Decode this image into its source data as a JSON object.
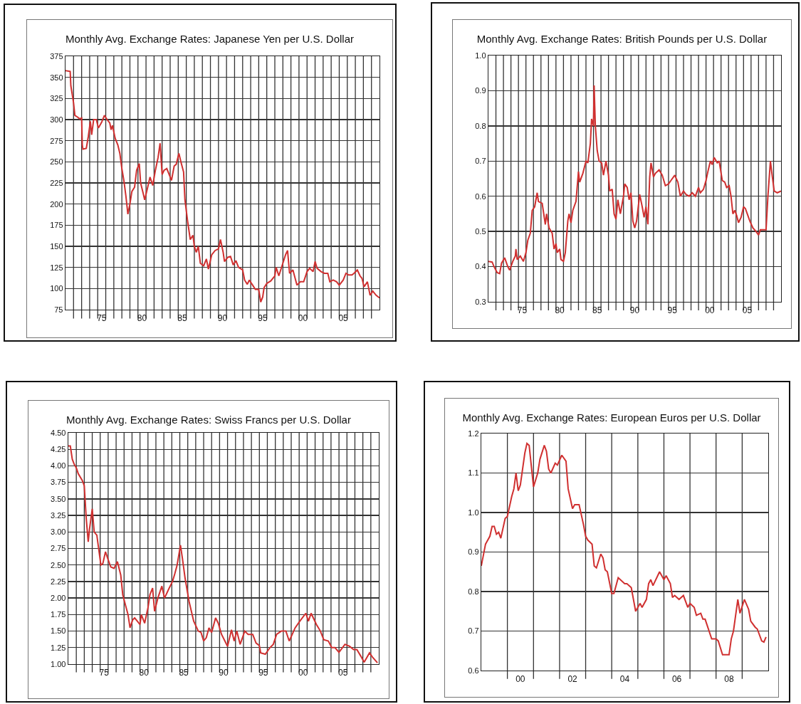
{
  "chart_data": [
    {
      "type": "line",
      "title": "Monthly Avg. Exchange Rates: Japanese Yen per U.S. Dollar",
      "color": "#d03030",
      "grid": true,
      "x": [
        "1971-01",
        "1971-08",
        "1971-09",
        "1972-01",
        "1972-03",
        "1972-07",
        "1972-10",
        "1973-01",
        "1973-02",
        "1973-03",
        "1973-08",
        "1973-11",
        "1974-02",
        "1974-04",
        "1974-07",
        "1974-11",
        "1975-02",
        "1975-07",
        "1975-11",
        "1976-03",
        "1976-07",
        "1976-09",
        "1976-11",
        "1977-03",
        "1977-07",
        "1977-10",
        "1978-01",
        "1978-04",
        "1978-07",
        "1978-10",
        "1979-01",
        "1979-04",
        "1979-08",
        "1979-11",
        "1980-03",
        "1980-05",
        "1980-09",
        "1980-11",
        "1981-03",
        "1981-07",
        "1981-11",
        "1982-03",
        "1982-07",
        "1982-10",
        "1983-01",
        "1983-04",
        "1983-08",
        "1983-11",
        "1984-03",
        "1984-07",
        "1984-10",
        "1985-02",
        "1985-05",
        "1985-09",
        "1985-11",
        "1986-03",
        "1986-07",
        "1986-11",
        "1987-01",
        "1987-04",
        "1987-07",
        "1987-10",
        "1988-03",
        "1988-07",
        "1988-10",
        "1989-03",
        "1989-08",
        "1990-01",
        "1990-04",
        "1990-08",
        "1990-10",
        "1991-03",
        "1991-07",
        "1991-11",
        "1992-03",
        "1992-07",
        "1993-01",
        "1993-04",
        "1993-08",
        "1993-11",
        "1994-04",
        "1994-08",
        "1995-01",
        "1995-04",
        "1995-07",
        "1995-09",
        "1996-01",
        "1996-07",
        "1997-01",
        "1997-03",
        "1997-07",
        "1998-01",
        "1998-05",
        "1998-08",
        "1998-11",
        "1999-04",
        "1999-10",
        "2000-03",
        "2000-08",
        "2001-01",
        "2001-05",
        "2001-10",
        "2002-01",
        "2002-04",
        "2002-10",
        "2003-03",
        "2003-08",
        "2003-11",
        "2004-04",
        "2004-09",
        "2005-01",
        "2005-07",
        "2005-11",
        "2006-03",
        "2006-08",
        "2006-11",
        "2007-04",
        "2007-08",
        "2007-11",
        "2008-02",
        "2008-07",
        "2008-11",
        "2009-03",
        "2009-08",
        "2010-01"
      ],
      "values": [
        358,
        357,
        340,
        320,
        305,
        303,
        301,
        302,
        270,
        265,
        266,
        280,
        298,
        282,
        300,
        300,
        290,
        297,
        305,
        300,
        296,
        288,
        293,
        278,
        270,
        260,
        242,
        228,
        210,
        188,
        200,
        215,
        220,
        240,
        248,
        225,
        212,
        205,
        218,
        232,
        222,
        240,
        255,
        272,
        235,
        240,
        242,
        236,
        228,
        245,
        247,
        260,
        250,
        238,
        205,
        180,
        158,
        163,
        150,
        143,
        150,
        130,
        127,
        135,
        123,
        140,
        145,
        147,
        158,
        143,
        132,
        137,
        138,
        128,
        133,
        125,
        122,
        110,
        105,
        110,
        104,
        99,
        99,
        84,
        90,
        101,
        106,
        109,
        115,
        125,
        115,
        130,
        140,
        145,
        118,
        122,
        104,
        108,
        108,
        120,
        124,
        120,
        132,
        124,
        120,
        118,
        118,
        108,
        110,
        108,
        104,
        110,
        118,
        116,
        116,
        118,
        122,
        115,
        112,
        102,
        108,
        92,
        97,
        92,
        89
      ],
      "xlim": [
        "1971-01",
        "2010-01"
      ],
      "xticks": [
        {
          "value": "1972",
          "label": null
        },
        {
          "value": "1973",
          "label": null
        },
        {
          "value": "1974",
          "label": null
        },
        {
          "value": "1975",
          "label": null
        },
        {
          "value": "1975-07",
          "label": "75"
        },
        {
          "value": "1976",
          "label": null
        },
        {
          "value": "1977",
          "label": null
        },
        {
          "value": "1978",
          "label": null
        },
        {
          "value": "1979",
          "label": null
        },
        {
          "value": "1980",
          "label": null
        },
        {
          "value": "1980-07",
          "label": "80"
        },
        {
          "value": "1981",
          "label": null
        },
        {
          "value": "1982",
          "label": null
        },
        {
          "value": "1983",
          "label": null
        },
        {
          "value": "1984",
          "label": null
        },
        {
          "value": "1985",
          "label": null
        },
        {
          "value": "1985-07",
          "label": "85"
        },
        {
          "value": "1986",
          "label": null
        },
        {
          "value": "1987",
          "label": null
        },
        {
          "value": "1988",
          "label": null
        },
        {
          "value": "1989",
          "label": null
        },
        {
          "value": "1990",
          "label": null
        },
        {
          "value": "1990-07",
          "label": "90"
        },
        {
          "value": "1991",
          "label": null
        },
        {
          "value": "1992",
          "label": null
        },
        {
          "value": "1993",
          "label": null
        },
        {
          "value": "1994",
          "label": null
        },
        {
          "value": "1995",
          "label": null
        },
        {
          "value": "1995-07",
          "label": "95"
        },
        {
          "value": "1996",
          "label": null
        },
        {
          "value": "1997",
          "label": null
        },
        {
          "value": "1998",
          "label": null
        },
        {
          "value": "1999",
          "label": null
        },
        {
          "value": "2000",
          "label": null
        },
        {
          "value": "2000-07",
          "label": "00"
        },
        {
          "value": "2001",
          "label": null
        },
        {
          "value": "2002",
          "label": null
        },
        {
          "value": "2003",
          "label": null
        },
        {
          "value": "2004",
          "label": null
        },
        {
          "value": "2005",
          "label": null
        },
        {
          "value": "2005-07",
          "label": "05"
        },
        {
          "value": "2006",
          "label": null
        },
        {
          "value": "2007",
          "label": null
        },
        {
          "value": "2008",
          "label": null
        },
        {
          "value": "2009",
          "label": null
        }
      ],
      "ylim": [
        75,
        375
      ],
      "yticks": [
        75,
        100,
        125,
        150,
        175,
        200,
        225,
        250,
        275,
        300,
        325,
        350,
        375
      ]
    },
    {
      "type": "line",
      "title": "Monthly Avg. Exchange Rates: British Pounds per U.S. Dollar",
      "color": "#d03030",
      "grid": true,
      "x": [
        "1971-01",
        "1971-07",
        "1971-10",
        "1972-03",
        "1972-07",
        "1972-10",
        "1973-03",
        "1973-08",
        "1973-11",
        "1974-04",
        "1974-08",
        "1974-09",
        "1974-11",
        "1975-04",
        "1975-09",
        "1976-01",
        "1976-04",
        "1976-08",
        "1976-11",
        "1977-03",
        "1977-07",
        "1977-09",
        "1978-03",
        "1978-08",
        "1978-10",
        "1979-02",
        "1979-07",
        "1979-10",
        "1980-01",
        "1980-03",
        "1980-07",
        "1980-09",
        "1981-01",
        "1981-04",
        "1981-08",
        "1981-10",
        "1982-01",
        "1982-04",
        "1982-09",
        "1983-01",
        "1983-03",
        "1983-08",
        "1984-01",
        "1984-04",
        "1984-08",
        "1984-10",
        "1985-01",
        "1985-02",
        "1985-04",
        "1985-07",
        "1985-10",
        "1986-02",
        "1986-05",
        "1986-09",
        "1987-01",
        "1987-03",
        "1987-07",
        "1987-10",
        "1988-01",
        "1988-04",
        "1988-08",
        "1989-01",
        "1989-03",
        "1989-07",
        "1989-10",
        "1990-01",
        "1990-04",
        "1990-07",
        "1990-10",
        "1991-03",
        "1991-07",
        "1991-10",
        "1992-01",
        "1992-04",
        "1992-07",
        "1992-09",
        "1993-01",
        "1993-04",
        "1993-10",
        "1994-03",
        "1994-08",
        "1995-01",
        "1995-05",
        "1995-11",
        "1996-04",
        "1996-08",
        "1997-01",
        "1997-05",
        "1997-10",
        "1998-03",
        "1998-08",
        "1999-01",
        "1999-04",
        "1999-09",
        "2000-01",
        "2000-04",
        "2000-08",
        "2000-11",
        "2001-02",
        "2001-07",
        "2001-10",
        "2002-03",
        "2002-07",
        "2002-10",
        "2003-02",
        "2003-05",
        "2003-08",
        "2003-11",
        "2004-02",
        "2004-05",
        "2004-09",
        "2005-01",
        "2005-04",
        "2005-08",
        "2005-11",
        "2006-04",
        "2006-09",
        "2007-01",
        "2007-04",
        "2007-09",
        "2008-01",
        "2008-04",
        "2008-08",
        "2008-10",
        "2009-02",
        "2009-07",
        "2010-01"
      ],
      "values": [
        0.415,
        0.413,
        0.4,
        0.383,
        0.38,
        0.41,
        0.425,
        0.4,
        0.39,
        0.415,
        0.43,
        0.45,
        0.42,
        0.43,
        0.415,
        0.44,
        0.475,
        0.495,
        0.56,
        0.57,
        0.61,
        0.585,
        0.58,
        0.52,
        0.55,
        0.51,
        0.495,
        0.45,
        0.465,
        0.44,
        0.45,
        0.42,
        0.415,
        0.44,
        0.53,
        0.55,
        0.525,
        0.56,
        0.585,
        0.67,
        0.64,
        0.665,
        0.7,
        0.695,
        0.75,
        0.82,
        0.8,
        0.915,
        0.8,
        0.73,
        0.7,
        0.695,
        0.66,
        0.7,
        0.66,
        0.615,
        0.62,
        0.55,
        0.535,
        0.59,
        0.55,
        0.6,
        0.635,
        0.625,
        0.59,
        0.61,
        0.53,
        0.51,
        0.53,
        0.605,
        0.57,
        0.54,
        0.57,
        0.52,
        0.655,
        0.695,
        0.655,
        0.665,
        0.675,
        0.66,
        0.63,
        0.635,
        0.645,
        0.66,
        0.64,
        0.6,
        0.615,
        0.605,
        0.6,
        0.61,
        0.6,
        0.625,
        0.61,
        0.62,
        0.645,
        0.67,
        0.7,
        0.69,
        0.71,
        0.695,
        0.7,
        0.645,
        0.64,
        0.625,
        0.63,
        0.6,
        0.55,
        0.56,
        0.545,
        0.525,
        0.54,
        0.57,
        0.565,
        0.545,
        0.53,
        0.51,
        0.5,
        0.49,
        0.505,
        0.505,
        0.505,
        0.6,
        0.7,
        0.67,
        0.615,
        0.61,
        0.615
      ],
      "xlim": [
        "1971-01",
        "2010-01"
      ],
      "xticks": [
        {
          "value": "1972",
          "label": null
        },
        {
          "value": "1973",
          "label": null
        },
        {
          "value": "1974",
          "label": null
        },
        {
          "value": "1975",
          "label": null
        },
        {
          "value": "1975-07",
          "label": "75"
        },
        {
          "value": "1976",
          "label": null
        },
        {
          "value": "1977",
          "label": null
        },
        {
          "value": "1978",
          "label": null
        },
        {
          "value": "1979",
          "label": null
        },
        {
          "value": "1980",
          "label": null
        },
        {
          "value": "1980-07",
          "label": "80"
        },
        {
          "value": "1981",
          "label": null
        },
        {
          "value": "1982",
          "label": null
        },
        {
          "value": "1983",
          "label": null
        },
        {
          "value": "1984",
          "label": null
        },
        {
          "value": "1985",
          "label": null
        },
        {
          "value": "1985-07",
          "label": "85"
        },
        {
          "value": "1986",
          "label": null
        },
        {
          "value": "1987",
          "label": null
        },
        {
          "value": "1988",
          "label": null
        },
        {
          "value": "1989",
          "label": null
        },
        {
          "value": "1990",
          "label": null
        },
        {
          "value": "1990-07",
          "label": "90"
        },
        {
          "value": "1991",
          "label": null
        },
        {
          "value": "1992",
          "label": null
        },
        {
          "value": "1993",
          "label": null
        },
        {
          "value": "1994",
          "label": null
        },
        {
          "value": "1995",
          "label": null
        },
        {
          "value": "1995-07",
          "label": "95"
        },
        {
          "value": "1996",
          "label": null
        },
        {
          "value": "1997",
          "label": null
        },
        {
          "value": "1998",
          "label": null
        },
        {
          "value": "1999",
          "label": null
        },
        {
          "value": "2000",
          "label": null
        },
        {
          "value": "2000-07",
          "label": "00"
        },
        {
          "value": "2001",
          "label": null
        },
        {
          "value": "2002",
          "label": null
        },
        {
          "value": "2003",
          "label": null
        },
        {
          "value": "2004",
          "label": null
        },
        {
          "value": "2005",
          "label": null
        },
        {
          "value": "2005-07",
          "label": "05"
        },
        {
          "value": "2006",
          "label": null
        },
        {
          "value": "2007",
          "label": null
        },
        {
          "value": "2008",
          "label": null
        },
        {
          "value": "2009",
          "label": null
        }
      ],
      "ylim": [
        0.3,
        1.0
      ],
      "yticks": [
        0.3,
        0.4,
        0.5,
        0.6,
        0.7,
        0.8,
        0.9,
        {
          "value": 1,
          "label": "1.0"
        }
      ]
    },
    {
      "type": "line",
      "title": "Monthly Avg. Exchange Rates: Swiss Francs per U.S. Dollar",
      "color": "#d03030",
      "grid": true,
      "x": [
        "1971-01",
        "1971-04",
        "1971-07",
        "1971-10",
        "1972-01",
        "1972-04",
        "1972-10",
        "1973-01",
        "1973-04",
        "1973-07",
        "1973-09",
        "1974-01",
        "1974-04",
        "1974-08",
        "1975-02",
        "1975-05",
        "1975-09",
        "1976-01",
        "1976-05",
        "1976-10",
        "1977-03",
        "1977-08",
        "1977-11",
        "1978-03",
        "1978-07",
        "1978-10",
        "1979-02",
        "1979-05",
        "1979-09",
        "1980-01",
        "1980-03",
        "1980-08",
        "1981-01",
        "1981-04",
        "1981-08",
        "1981-11",
        "1982-04",
        "1982-10",
        "1983-02",
        "1983-09",
        "1984-02",
        "1984-05",
        "1984-09",
        "1985-02",
        "1985-05",
        "1985-09",
        "1986-03",
        "1986-10",
        "1987-05",
        "1987-09",
        "1988-01",
        "1988-05",
        "1988-09",
        "1989-01",
        "1989-07",
        "1989-11",
        "1990-04",
        "1991-01",
        "1991-07",
        "1991-11",
        "1992-03",
        "1992-08",
        "1993-03",
        "1993-08",
        "1994-03",
        "1994-08",
        "1995-01",
        "1995-03",
        "1995-10",
        "1996-05",
        "1996-10",
        "1997-03",
        "1997-10",
        "1998-05",
        "1998-10",
        "1999-07",
        "2000-02",
        "2000-11",
        "2001-03",
        "2001-07",
        "2002-03",
        "2002-09",
        "2003-02",
        "2003-09",
        "2004-02",
        "2004-07",
        "2005-01",
        "2005-10",
        "2006-05",
        "2006-11",
        "2007-04",
        "2007-10",
        "2008-03",
        "2008-11",
        "2009-04",
        "2009-11"
      ],
      "values": [
        4.3,
        4.3,
        4.1,
        4.02,
        3.97,
        3.88,
        3.78,
        3.7,
        3.2,
        2.85,
        3.05,
        3.35,
        3.0,
        2.95,
        2.5,
        2.52,
        2.7,
        2.58,
        2.47,
        2.45,
        2.55,
        2.35,
        2.05,
        1.9,
        1.75,
        1.55,
        1.67,
        1.7,
        1.65,
        1.6,
        1.75,
        1.62,
        1.85,
        2.05,
        2.15,
        1.8,
        2.0,
        2.18,
        2.0,
        2.15,
        2.25,
        2.35,
        2.5,
        2.8,
        2.6,
        2.3,
        1.95,
        1.65,
        1.5,
        1.48,
        1.35,
        1.4,
        1.55,
        1.48,
        1.7,
        1.62,
        1.45,
        1.27,
        1.52,
        1.35,
        1.5,
        1.3,
        1.5,
        1.45,
        1.45,
        1.32,
        1.28,
        1.17,
        1.15,
        1.25,
        1.3,
        1.45,
        1.5,
        1.5,
        1.35,
        1.55,
        1.65,
        1.77,
        1.65,
        1.77,
        1.6,
        1.5,
        1.37,
        1.35,
        1.25,
        1.25,
        1.18,
        1.3,
        1.27,
        1.22,
        1.22,
        1.12,
        1.03,
        1.17,
        1.1,
        1.02
      ],
      "xlim": [
        "1971-01",
        "2010-01"
      ],
      "xticks": [
        {
          "value": "1972",
          "label": null
        },
        {
          "value": "1973",
          "label": null
        },
        {
          "value": "1974",
          "label": null
        },
        {
          "value": "1975",
          "label": null
        },
        {
          "value": "1975-07",
          "label": "75"
        },
        {
          "value": "1976",
          "label": null
        },
        {
          "value": "1977",
          "label": null
        },
        {
          "value": "1978",
          "label": null
        },
        {
          "value": "1979",
          "label": null
        },
        {
          "value": "1980",
          "label": null
        },
        {
          "value": "1980-07",
          "label": "80"
        },
        {
          "value": "1981",
          "label": null
        },
        {
          "value": "1982",
          "label": null
        },
        {
          "value": "1983",
          "label": null
        },
        {
          "value": "1984",
          "label": null
        },
        {
          "value": "1985",
          "label": null
        },
        {
          "value": "1985-07",
          "label": "85"
        },
        {
          "value": "1986",
          "label": null
        },
        {
          "value": "1987",
          "label": null
        },
        {
          "value": "1988",
          "label": null
        },
        {
          "value": "1989",
          "label": null
        },
        {
          "value": "1990",
          "label": null
        },
        {
          "value": "1990-07",
          "label": "90"
        },
        {
          "value": "1991",
          "label": null
        },
        {
          "value": "1992",
          "label": null
        },
        {
          "value": "1993",
          "label": null
        },
        {
          "value": "1994",
          "label": null
        },
        {
          "value": "1995",
          "label": null
        },
        {
          "value": "1995-07",
          "label": "95"
        },
        {
          "value": "1996",
          "label": null
        },
        {
          "value": "1997",
          "label": null
        },
        {
          "value": "1998",
          "label": null
        },
        {
          "value": "1999",
          "label": null
        },
        {
          "value": "2000",
          "label": null
        },
        {
          "value": "2000-07",
          "label": "00"
        },
        {
          "value": "2001",
          "label": null
        },
        {
          "value": "2002",
          "label": null
        },
        {
          "value": "2003",
          "label": null
        },
        {
          "value": "2004",
          "label": null
        },
        {
          "value": "2005",
          "label": null
        },
        {
          "value": "2005-07",
          "label": "05"
        },
        {
          "value": "2006",
          "label": null
        },
        {
          "value": "2007",
          "label": null
        },
        {
          "value": "2008",
          "label": null
        },
        {
          "value": "2009",
          "label": null
        }
      ],
      "ylim": [
        1.0,
        4.5
      ],
      "yticks": [
        {
          "value": 1,
          "label": "1.00"
        },
        {
          "value": 1.25,
          "label": "1.25"
        },
        {
          "value": 1.5,
          "label": "1.50"
        },
        {
          "value": 1.75,
          "label": "1.75"
        },
        {
          "value": 2,
          "label": "2.00"
        },
        {
          "value": 2.25,
          "label": "2.25"
        },
        {
          "value": 2.5,
          "label": "2.50"
        },
        {
          "value": 2.75,
          "label": "2.75"
        },
        {
          "value": 3,
          "label": "3.00"
        },
        {
          "value": 3.25,
          "label": "3.25"
        },
        {
          "value": 3.5,
          "label": "3.50"
        },
        {
          "value": 3.75,
          "label": "3.75"
        },
        {
          "value": 4,
          "label": "4.00"
        },
        {
          "value": 4.25,
          "label": "4.25"
        },
        {
          "value": 4.5,
          "label": "4.50"
        }
      ]
    },
    {
      "type": "line",
      "title": "Monthly Avg. Exchange Rates: European Euros per U.S. Dollar",
      "color": "#d03030",
      "grid": true,
      "x": [
        "1999-01",
        "1999-03",
        "1999-05",
        "1999-06",
        "1999-07",
        "1999-08",
        "1999-09",
        "1999-10",
        "1999-12",
        "2000-01",
        "2000-03",
        "2000-04",
        "2000-05",
        "2000-06",
        "2000-07",
        "2000-09",
        "2000-10",
        "2000-11",
        "2001-01",
        "2001-03",
        "2001-04",
        "2001-06",
        "2001-07",
        "2001-08",
        "2001-09",
        "2001-11",
        "2001-12",
        "2002-02",
        "2002-04",
        "2002-05",
        "2002-07",
        "2002-08",
        "2002-10",
        "2002-12",
        "2003-01",
        "2003-02",
        "2003-04",
        "2003-05",
        "2003-06",
        "2003-08",
        "2003-09",
        "2003-10",
        "2003-11",
        "2004-01",
        "2004-02",
        "2004-04",
        "2004-07",
        "2004-08",
        "2004-10",
        "2004-12",
        "2005-02",
        "2005-03",
        "2005-05",
        "2005-06",
        "2005-07",
        "2005-08",
        "2005-11",
        "2006-01",
        "2006-02",
        "2006-04",
        "2006-05",
        "2006-06",
        "2006-08",
        "2006-10",
        "2006-12",
        "2007-01",
        "2007-03",
        "2007-04",
        "2007-06",
        "2007-07",
        "2007-08",
        "2007-11",
        "2008-01",
        "2008-02",
        "2008-04",
        "2008-05",
        "2008-07",
        "2008-08",
        "2008-09",
        "2008-11",
        "2008-12",
        "2009-02",
        "2009-04",
        "2009-05",
        "2009-07",
        "2009-08",
        "2009-10",
        "2009-11",
        "2009-12"
      ],
      "values": [
        0.865,
        0.92,
        0.94,
        0.965,
        0.965,
        0.945,
        0.95,
        0.935,
        0.985,
        0.99,
        1.04,
        1.06,
        1.1,
        1.055,
        1.07,
        1.15,
        1.175,
        1.17,
        1.065,
        1.1,
        1.135,
        1.17,
        1.155,
        1.11,
        1.1,
        1.125,
        1.12,
        1.145,
        1.13,
        1.06,
        1.01,
        1.02,
        1.02,
        0.97,
        0.94,
        0.93,
        0.92,
        0.865,
        0.86,
        0.895,
        0.885,
        0.855,
        0.85,
        0.795,
        0.795,
        0.835,
        0.82,
        0.82,
        0.81,
        0.75,
        0.77,
        0.76,
        0.78,
        0.82,
        0.83,
        0.815,
        0.85,
        0.83,
        0.84,
        0.82,
        0.785,
        0.79,
        0.78,
        0.79,
        0.76,
        0.77,
        0.76,
        0.74,
        0.745,
        0.73,
        0.73,
        0.68,
        0.68,
        0.675,
        0.64,
        0.64,
        0.64,
        0.68,
        0.7,
        0.78,
        0.745,
        0.78,
        0.755,
        0.725,
        0.71,
        0.705,
        0.675,
        0.672,
        0.685
      ],
      "xlim": [
        "1999-01",
        "2010-01"
      ],
      "xticks": [
        {
          "value": "2000",
          "label": null
        },
        {
          "value": "2000-07",
          "label": "00"
        },
        {
          "value": "2001",
          "label": null
        },
        {
          "value": "2002",
          "label": null
        },
        {
          "value": "2002-07",
          "label": "02"
        },
        {
          "value": "2003",
          "label": null
        },
        {
          "value": "2004",
          "label": null
        },
        {
          "value": "2004-07",
          "label": "04"
        },
        {
          "value": "2005",
          "label": null
        },
        {
          "value": "2006",
          "label": null
        },
        {
          "value": "2006-07",
          "label": "06"
        },
        {
          "value": "2007",
          "label": null
        },
        {
          "value": "2008",
          "label": null
        },
        {
          "value": "2008-07",
          "label": "08"
        },
        {
          "value": "2009",
          "label": null
        }
      ],
      "ylim": [
        0.6,
        1.2
      ],
      "yticks": [
        0.6,
        0.7,
        0.8,
        0.9,
        {
          "value": 1,
          "label": "1.0"
        },
        1.1,
        1.2
      ]
    }
  ]
}
